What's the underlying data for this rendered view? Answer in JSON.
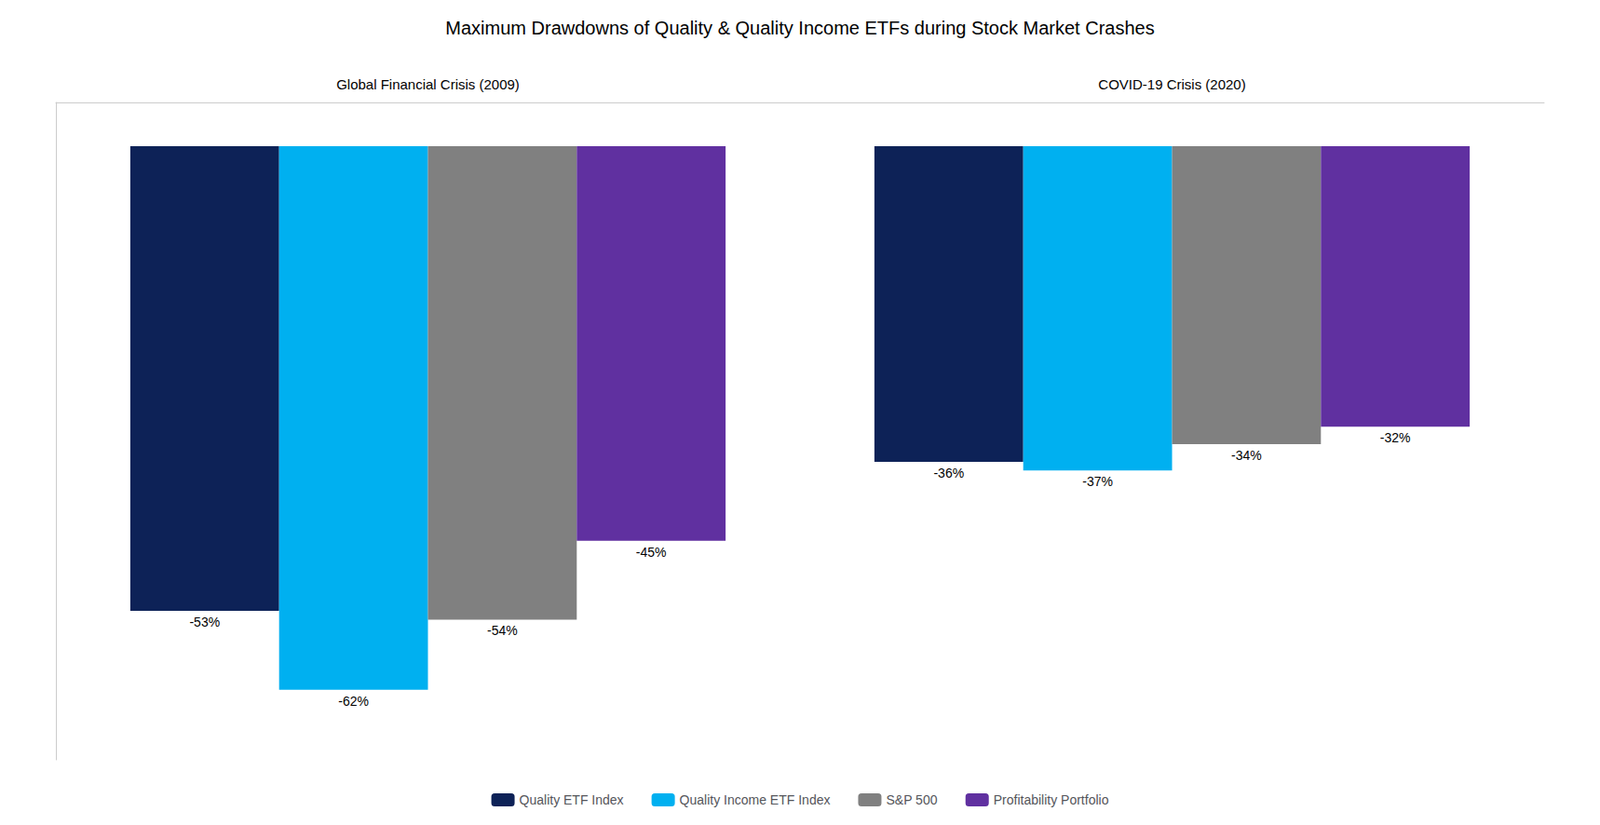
{
  "chart_data": {
    "type": "bar",
    "title": "Maximum Drawdowns of Quality & Quality Income ETFs during Stock Market Crashes",
    "categories": [
      "Global Financial Crisis (2009)",
      "COVID-19 Crisis (2020)"
    ],
    "series": [
      {
        "name": "Quality ETF Index",
        "color": "#0d2257",
        "values": [
          -53,
          -36
        ],
        "value_labels": [
          "-53%",
          "-36%"
        ]
      },
      {
        "name": "Quality Income ETF Index",
        "color": "#00b0f0",
        "values": [
          -62,
          -37
        ],
        "value_labels": [
          "-62%",
          "-37%"
        ]
      },
      {
        "name": "S&P 500",
        "color": "#808080",
        "values": [
          -54,
          -34
        ],
        "value_labels": [
          "-54%",
          "-34%"
        ]
      },
      {
        "name": "Profitability Portfolio",
        "color": "#6030a0",
        "values": [
          -45,
          -32
        ],
        "value_labels": [
          "-45%",
          "-32%"
        ]
      }
    ],
    "ylim": [
      -70,
      5
    ],
    "grid": false,
    "legend": "bottom",
    "data_labels": true,
    "tick_labels": "x"
  }
}
